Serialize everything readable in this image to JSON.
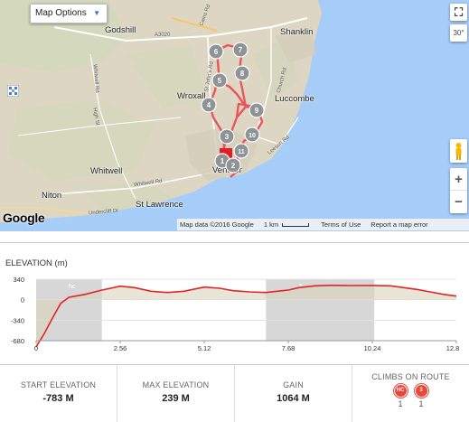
{
  "map": {
    "options_label": "Map Options",
    "towns": {
      "godshill": "Godshill",
      "shanklin": "Shanklin",
      "wroxall": "Wroxall",
      "luccombe": "Luccombe",
      "whitwell": "Whitwell",
      "niton": "Niton",
      "st_lawrence": "St Lawrence",
      "ventnor": "Ventnor"
    },
    "roads": {
      "a3020": "A3020",
      "stjohns": "St John's Rd",
      "whitwell_rd": "Whitwell Rd",
      "high_st": "High St",
      "church_rd": "Church Rd",
      "leeson_rd": "Leeson Rd",
      "whitwell_rd2": "Whitwell Rd",
      "undercliff": "Undercliff Dr",
      "cains": "Cains Rd"
    },
    "waypoints": [
      "1",
      "2",
      "3",
      "4",
      "5",
      "6",
      "7",
      "8",
      "9",
      "10",
      "11"
    ],
    "google": "Google",
    "attribution": {
      "data": "Map data ©2016 Google",
      "scale": "1 km",
      "terms": "Terms of Use",
      "report": "Report a map error"
    },
    "tilt_label": "30°",
    "zoom_in": "+",
    "zoom_out": "−",
    "fullscreen_glyph": "⛶",
    "colors": {
      "route": "#e8555a",
      "waypoint": "#8e9496",
      "sea": "#a3ccff",
      "land": "#d9d3c3"
    }
  },
  "elevation": {
    "title": "ELEVATION (m)",
    "climb_labels": [
      "hc",
      "3"
    ]
  },
  "chart_data": {
    "type": "line",
    "title": "ELEVATION (m)",
    "xlabel": "",
    "ylabel": "",
    "x_ticks": [
      "0",
      "2.56",
      "5.12",
      "7.68",
      "10.24",
      "12.8"
    ],
    "y_ticks": [
      "340",
      "0",
      "-340",
      "-680"
    ],
    "xlim": [
      0,
      12.8
    ],
    "ylim": [
      -680,
      340
    ],
    "climb_zones": [
      {
        "label": "hc",
        "x_start": 0,
        "x_end": 2.0
      },
      {
        "label": "3",
        "x_start": 7.0,
        "x_end": 10.3
      }
    ],
    "series": [
      {
        "x": [
          0,
          0.25,
          0.5,
          0.75,
          1.0,
          1.5,
          2.0,
          2.56,
          3.0,
          3.5,
          4.0,
          4.5,
          5.12,
          5.6,
          6.0,
          6.5,
          7.0,
          7.5,
          7.68,
          8.0,
          8.5,
          9.0,
          9.5,
          10.24,
          10.8,
          11.2,
          11.6,
          12.0,
          12.4,
          12.8
        ],
        "y": [
          -783,
          -560,
          -300,
          -60,
          40,
          90,
          160,
          225,
          200,
          140,
          120,
          140,
          210,
          190,
          150,
          130,
          120,
          150,
          160,
          200,
          230,
          239,
          235,
          236,
          230,
          200,
          170,
          130,
          90,
          60
        ]
      }
    ],
    "colors": {
      "line": "#e02525",
      "climb_zone": "#d7d7d7",
      "area_fill": "#d8d2bb"
    }
  },
  "stats": {
    "start_label": "START ELEVATION",
    "start_value": "-783 M",
    "max_label": "MAX ELEVATION",
    "max_value": "239 M",
    "gain_label": "GAIN",
    "gain_value": "1064 M",
    "climbs_label": "CLIMBS ON ROUTE",
    "climbs": [
      {
        "badge": "HC",
        "count": "1"
      },
      {
        "badge": "3",
        "count": "1"
      }
    ]
  }
}
